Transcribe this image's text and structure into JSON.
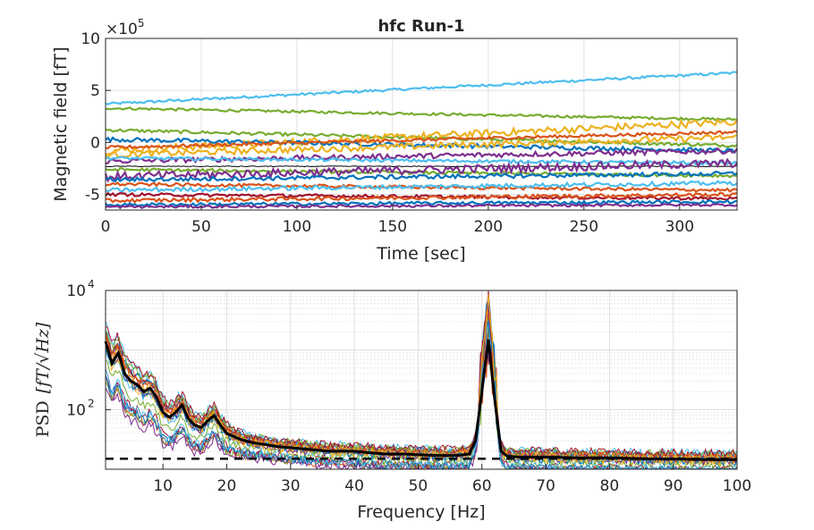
{
  "chart_data": [
    {
      "type": "line",
      "title": "hfc Run-1",
      "xlabel": "Time [sec]",
      "ylabel": "Magnetic field [fT]",
      "exponent_label": "×10",
      "exponent_power": "5",
      "xlim": [
        0,
        330
      ],
      "ylim": [
        -6.5,
        10
      ],
      "xticks": [
        0,
        50,
        100,
        150,
        200,
        250,
        300
      ],
      "yticks": [
        -5,
        0,
        5,
        10
      ],
      "ytick_labels": [
        "-5",
        "0",
        "5",
        "10"
      ],
      "grid": true,
      "series": [
        {
          "color": "#4DBEEE",
          "start": 3.7,
          "end": 6.7,
          "noise": 0.12
        },
        {
          "color": "#77AC30",
          "start": 3.3,
          "end": 2.2,
          "noise": 0.12
        },
        {
          "color": "#77AC30",
          "start": 1.2,
          "end": -0.3,
          "noise": 0.15
        },
        {
          "color": "#EDB120",
          "start": -0.8,
          "end": 2.0,
          "noise": 0.35
        },
        {
          "color": "#0072BD",
          "start": 0.3,
          "end": -0.8,
          "noise": 0.2
        },
        {
          "color": "#D95319",
          "start": -0.5,
          "end": 1.0,
          "noise": 0.15
        },
        {
          "color": "#EDB120",
          "start": -1.2,
          "end": 0.5,
          "noise": 0.3
        },
        {
          "color": "#7E2F8E",
          "start": -1.8,
          "end": -0.8,
          "noise": 0.25
        },
        {
          "color": "#4DBEEE",
          "start": -1.5,
          "end": -2.0,
          "noise": 0.15
        },
        {
          "color": "#000000",
          "start": -2.3,
          "end": -2.3,
          "noise": 0.04
        },
        {
          "color": "#77AC30",
          "start": -2.6,
          "end": -3.2,
          "noise": 0.15
        },
        {
          "color": "#7E2F8E",
          "start": -3.3,
          "end": -2.0,
          "noise": 0.4
        },
        {
          "color": "#0072BD",
          "start": -3.6,
          "end": -3.0,
          "noise": 0.2
        },
        {
          "color": "#D95319",
          "start": -4.0,
          "end": -4.6,
          "noise": 0.15
        },
        {
          "color": "#4DBEEE",
          "start": -4.6,
          "end": -3.9,
          "noise": 0.2
        },
        {
          "color": "#A2142F",
          "start": -5.0,
          "end": -5.4,
          "noise": 0.15
        },
        {
          "color": "#D95319",
          "start": -5.6,
          "end": -5.0,
          "noise": 0.18
        },
        {
          "color": "#0072BD",
          "start": -6.0,
          "end": -5.7,
          "noise": 0.15
        },
        {
          "color": "#7E2F8E",
          "start": -6.2,
          "end": -6.0,
          "noise": 0.12
        }
      ]
    },
    {
      "type": "line",
      "xlabel": "Frequency [Hz]",
      "ylabel": "PSD",
      "ylabel_math": "[fT/√Hz]",
      "xscale": "linear",
      "yscale": "log",
      "xlim": [
        1,
        100
      ],
      "ylim": [
        10,
        10000
      ],
      "xticks": [
        10,
        20,
        30,
        40,
        50,
        60,
        70,
        80,
        90,
        100
      ],
      "ytick_labels": [
        {
          "base": "10",
          "exp": "4",
          "value": 10000
        },
        {
          "base": "10",
          "exp": "2",
          "value": 100
        }
      ],
      "grid": true,
      "minor_grid": true,
      "noise_floor": 15,
      "peak_frequency": 61,
      "mean_curve": [
        [
          1,
          1400
        ],
        [
          2,
          600
        ],
        [
          3,
          900
        ],
        [
          4,
          400
        ],
        [
          5,
          300
        ],
        [
          6,
          260
        ],
        [
          7,
          200
        ],
        [
          8,
          230
        ],
        [
          9,
          160
        ],
        [
          10,
          90
        ],
        [
          11,
          75
        ],
        [
          12,
          90
        ],
        [
          13,
          120
        ],
        [
          14,
          70
        ],
        [
          15,
          55
        ],
        [
          16,
          50
        ],
        [
          17,
          65
        ],
        [
          18,
          80
        ],
        [
          19,
          55
        ],
        [
          20,
          40
        ],
        [
          22,
          32
        ],
        [
          24,
          28
        ],
        [
          26,
          26
        ],
        [
          28,
          24
        ],
        [
          30,
          23
        ],
        [
          32,
          22
        ],
        [
          34,
          21
        ],
        [
          36,
          20
        ],
        [
          38,
          20
        ],
        [
          40,
          20
        ],
        [
          42,
          19
        ],
        [
          45,
          18
        ],
        [
          48,
          18
        ],
        [
          50,
          17.5
        ],
        [
          53,
          17
        ],
        [
          56,
          17
        ],
        [
          58,
          18
        ],
        [
          59,
          30
        ],
        [
          60,
          200
        ],
        [
          61,
          1500
        ],
        [
          62,
          150
        ],
        [
          63,
          20
        ],
        [
          64,
          16.5
        ],
        [
          66,
          16
        ],
        [
          70,
          16
        ],
        [
          75,
          15.5
        ],
        [
          80,
          15.5
        ],
        [
          85,
          15
        ],
        [
          90,
          14.8
        ],
        [
          95,
          14.5
        ],
        [
          100,
          14.5
        ]
      ],
      "channel_colors": [
        "#0072BD",
        "#D95319",
        "#EDB120",
        "#7E2F8E",
        "#77AC30",
        "#4DBEEE",
        "#A2142F"
      ]
    }
  ]
}
